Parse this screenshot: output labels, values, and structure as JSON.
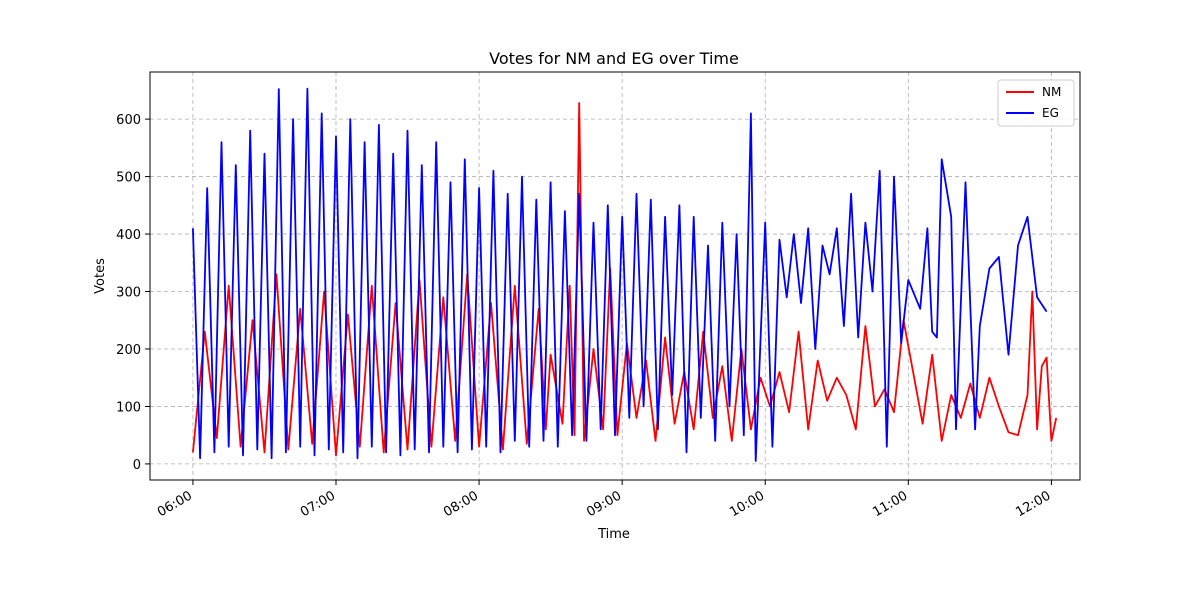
{
  "chart_data": {
    "type": "line",
    "title": "Votes for NM and EG over Time",
    "xlabel": "Time",
    "ylabel": "Votes",
    "xlim": [
      "05:42",
      "12:12"
    ],
    "ylim": [
      -28,
      682
    ],
    "x_ticks": [
      "06:00",
      "07:00",
      "08:00",
      "09:00",
      "10:00",
      "11:00",
      "12:00"
    ],
    "y_ticks": [
      0,
      100,
      200,
      300,
      400,
      500,
      600
    ],
    "grid": true,
    "legend_position": "top-right",
    "series": [
      {
        "name": "NM",
        "color": "#ff0000",
        "points": [
          [
            "06:00",
            20
          ],
          [
            "06:05",
            230
          ],
          [
            "06:10",
            45
          ],
          [
            "06:15",
            310
          ],
          [
            "06:20",
            30
          ],
          [
            "06:25",
            250
          ],
          [
            "06:30",
            20
          ],
          [
            "06:35",
            330
          ],
          [
            "06:40",
            25
          ],
          [
            "06:45",
            270
          ],
          [
            "06:50",
            35
          ],
          [
            "06:55",
            300
          ],
          [
            "07:00",
            15
          ],
          [
            "07:05",
            260
          ],
          [
            "07:10",
            30
          ],
          [
            "07:15",
            310
          ],
          [
            "07:20",
            20
          ],
          [
            "07:25",
            280
          ],
          [
            "07:30",
            25
          ],
          [
            "07:35",
            320
          ],
          [
            "07:40",
            30
          ],
          [
            "07:45",
            290
          ],
          [
            "07:50",
            40
          ],
          [
            "07:55",
            330
          ],
          [
            "08:00",
            30
          ],
          [
            "08:05",
            280
          ],
          [
            "08:10",
            25
          ],
          [
            "08:15",
            310
          ],
          [
            "08:20",
            35
          ],
          [
            "08:25",
            270
          ],
          [
            "08:28",
            60
          ],
          [
            "08:30",
            190
          ],
          [
            "08:35",
            70
          ],
          [
            "08:38",
            310
          ],
          [
            "08:40",
            50
          ],
          [
            "08:42",
            628
          ],
          [
            "08:44",
            40
          ],
          [
            "08:48",
            200
          ],
          [
            "08:52",
            60
          ],
          [
            "08:55",
            340
          ],
          [
            "08:58",
            50
          ],
          [
            "09:02",
            210
          ],
          [
            "09:06",
            80
          ],
          [
            "09:10",
            180
          ],
          [
            "09:14",
            40
          ],
          [
            "09:18",
            220
          ],
          [
            "09:22",
            70
          ],
          [
            "09:26",
            160
          ],
          [
            "09:30",
            60
          ],
          [
            "09:34",
            230
          ],
          [
            "09:38",
            80
          ],
          [
            "09:42",
            170
          ],
          [
            "09:46",
            40
          ],
          [
            "09:50",
            200
          ],
          [
            "09:54",
            60
          ],
          [
            "09:58",
            150
          ],
          [
            "10:02",
            100
          ],
          [
            "10:06",
            160
          ],
          [
            "10:10",
            90
          ],
          [
            "10:14",
            230
          ],
          [
            "10:18",
            60
          ],
          [
            "10:22",
            180
          ],
          [
            "10:26",
            110
          ],
          [
            "10:30",
            150
          ],
          [
            "10:34",
            120
          ],
          [
            "10:38",
            60
          ],
          [
            "10:42",
            240
          ],
          [
            "10:46",
            100
          ],
          [
            "10:50",
            130
          ],
          [
            "10:54",
            90
          ],
          [
            "10:58",
            250
          ],
          [
            "11:02",
            160
          ],
          [
            "11:06",
            70
          ],
          [
            "11:10",
            190
          ],
          [
            "11:14",
            40
          ],
          [
            "11:18",
            120
          ],
          [
            "11:22",
            80
          ],
          [
            "11:26",
            140
          ],
          [
            "11:30",
            80
          ],
          [
            "11:34",
            150
          ],
          [
            "11:38",
            100
          ],
          [
            "11:42",
            55
          ],
          [
            "11:46",
            50
          ],
          [
            "11:50",
            120
          ],
          [
            "11:52",
            300
          ],
          [
            "11:54",
            60
          ],
          [
            "11:56",
            170
          ],
          [
            "11:58",
            185
          ],
          [
            "12:00",
            40
          ],
          [
            "12:02",
            80
          ]
        ]
      },
      {
        "name": "EG",
        "color": "#0000ff",
        "points": [
          [
            "06:00",
            410
          ],
          [
            "06:03",
            10
          ],
          [
            "06:06",
            480
          ],
          [
            "06:09",
            20
          ],
          [
            "06:12",
            560
          ],
          [
            "06:15",
            30
          ],
          [
            "06:18",
            520
          ],
          [
            "06:21",
            15
          ],
          [
            "06:24",
            580
          ],
          [
            "06:27",
            25
          ],
          [
            "06:30",
            540
          ],
          [
            "06:33",
            10
          ],
          [
            "06:36",
            652
          ],
          [
            "06:39",
            20
          ],
          [
            "06:42",
            600
          ],
          [
            "06:45",
            30
          ],
          [
            "06:48",
            653
          ],
          [
            "06:51",
            15
          ],
          [
            "06:54",
            610
          ],
          [
            "06:57",
            25
          ],
          [
            "07:00",
            570
          ],
          [
            "07:03",
            20
          ],
          [
            "07:06",
            600
          ],
          [
            "07:09",
            10
          ],
          [
            "07:12",
            560
          ],
          [
            "07:15",
            30
          ],
          [
            "07:18",
            590
          ],
          [
            "07:21",
            20
          ],
          [
            "07:24",
            540
          ],
          [
            "07:27",
            15
          ],
          [
            "07:30",
            580
          ],
          [
            "07:33",
            25
          ],
          [
            "07:36",
            520
          ],
          [
            "07:39",
            20
          ],
          [
            "07:42",
            560
          ],
          [
            "07:45",
            30
          ],
          [
            "07:48",
            490
          ],
          [
            "07:51",
            20
          ],
          [
            "07:54",
            530
          ],
          [
            "07:57",
            25
          ],
          [
            "08:00",
            480
          ],
          [
            "08:03",
            30
          ],
          [
            "08:06",
            510
          ],
          [
            "08:09",
            20
          ],
          [
            "08:12",
            470
          ],
          [
            "08:15",
            40
          ],
          [
            "08:18",
            500
          ],
          [
            "08:21",
            30
          ],
          [
            "08:24",
            460
          ],
          [
            "08:27",
            40
          ],
          [
            "08:30",
            490
          ],
          [
            "08:33",
            30
          ],
          [
            "08:36",
            440
          ],
          [
            "08:39",
            50
          ],
          [
            "08:42",
            470
          ],
          [
            "08:45",
            40
          ],
          [
            "08:48",
            420
          ],
          [
            "08:51",
            60
          ],
          [
            "08:54",
            450
          ],
          [
            "08:57",
            50
          ],
          [
            "09:00",
            430
          ],
          [
            "09:03",
            80
          ],
          [
            "09:06",
            470
          ],
          [
            "09:09",
            100
          ],
          [
            "09:12",
            460
          ],
          [
            "09:15",
            60
          ],
          [
            "09:18",
            430
          ],
          [
            "09:21",
            120
          ],
          [
            "09:24",
            450
          ],
          [
            "09:27",
            20
          ],
          [
            "09:30",
            430
          ],
          [
            "09:33",
            80
          ],
          [
            "09:36",
            380
          ],
          [
            "09:39",
            40
          ],
          [
            "09:42",
            420
          ],
          [
            "09:45",
            100
          ],
          [
            "09:48",
            400
          ],
          [
            "09:51",
            50
          ],
          [
            "09:54",
            610
          ],
          [
            "09:56",
            5
          ],
          [
            "10:00",
            420
          ],
          [
            "10:03",
            30
          ],
          [
            "10:06",
            390
          ],
          [
            "10:09",
            290
          ],
          [
            "10:12",
            400
          ],
          [
            "10:15",
            280
          ],
          [
            "10:18",
            410
          ],
          [
            "10:21",
            200
          ],
          [
            "10:24",
            380
          ],
          [
            "10:27",
            330
          ],
          [
            "10:30",
            410
          ],
          [
            "10:33",
            240
          ],
          [
            "10:36",
            470
          ],
          [
            "10:39",
            220
          ],
          [
            "10:42",
            420
          ],
          [
            "10:45",
            300
          ],
          [
            "10:48",
            510
          ],
          [
            "10:51",
            30
          ],
          [
            "10:54",
            500
          ],
          [
            "10:57",
            210
          ],
          [
            "11:00",
            320
          ],
          [
            "11:05",
            270
          ],
          [
            "11:08",
            410
          ],
          [
            "11:10",
            230
          ],
          [
            "11:12",
            220
          ],
          [
            "11:14",
            530
          ],
          [
            "11:18",
            430
          ],
          [
            "11:20",
            60
          ],
          [
            "11:24",
            490
          ],
          [
            "11:28",
            60
          ],
          [
            "11:30",
            240
          ],
          [
            "11:34",
            340
          ],
          [
            "11:38",
            360
          ],
          [
            "11:42",
            190
          ],
          [
            "11:46",
            380
          ],
          [
            "11:50",
            430
          ],
          [
            "11:54",
            290
          ],
          [
            "11:58",
            265
          ]
        ]
      }
    ]
  }
}
